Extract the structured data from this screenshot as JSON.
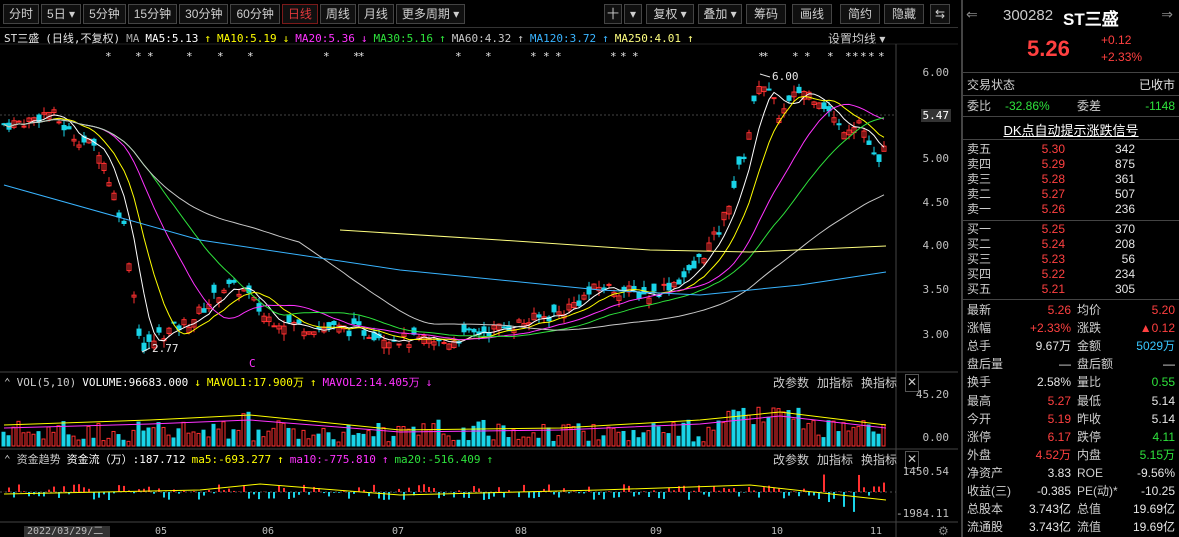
{
  "toolbar": {
    "tabs": [
      {
        "label": "分时",
        "active": false
      },
      {
        "label": "5日 ▾",
        "active": false
      },
      {
        "label": "5分钟",
        "active": false
      },
      {
        "label": "15分钟",
        "active": false
      },
      {
        "label": "30分钟",
        "active": false
      },
      {
        "label": "60分钟",
        "active": false
      },
      {
        "label": "日线",
        "active": true
      },
      {
        "label": "周线",
        "active": false
      },
      {
        "label": "月线",
        "active": false
      },
      {
        "label": "更多周期 ▾",
        "active": false
      }
    ],
    "right": [
      "十",
      "▾",
      "复权 ▾",
      "叠加 ▾",
      "筹码",
      "画线",
      "简约",
      "隐藏",
      "⇆"
    ]
  },
  "ma_line": {
    "name": "ST三盛",
    "mode": "(日线,不复权)",
    "ma": "MA",
    "ma5": "MA5:5.13",
    "ma10": "MA10:5.19",
    "ma20": "MA20:5.36",
    "ma30": "MA30:5.16",
    "ma60": "MA60:4.32",
    "ma120": "MA120:3.72",
    "ma250": "MA250:4.01",
    "setting": "设置均线 ▾"
  },
  "price_axis": [
    "6.00",
    "5.50",
    "5.00",
    "4.50",
    "4.00",
    "3.50",
    "3.00"
  ],
  "current_price_tag": "5.47",
  "annotations": {
    "high": "6.00",
    "low": "2.77",
    "mark": "C"
  },
  "vol": {
    "title": "VOL(5,10)",
    "volume": "VOLUME:96683.000",
    "mavol1": "MAVOL1:17.900万",
    "mavol2": "MAVOL2:14.405万",
    "axis_top": "45.20",
    "axis_bottom": "0.00"
  },
  "flow": {
    "title": "资金趋势",
    "label": "资金流（万）:187.712",
    "ma5": "ma5:-693.277",
    "ma10": "ma10:-775.810",
    "ma20": "ma20:-516.409",
    "axis_top": "1450.54",
    "axis_bottom": "-1984.11"
  },
  "panel_buttons": [
    "改参数",
    "加指标",
    "换指标"
  ],
  "x_axis": {
    "date": "2022/03/29/二",
    "months": [
      "05",
      "06",
      "07",
      "08",
      "09",
      "10",
      "11"
    ]
  },
  "colors": {
    "up": "#ff3030",
    "down": "#19d4e8",
    "ma5": "#ffffff",
    "ma10": "#ffff00",
    "ma20": "#ff33ff",
    "ma30": "#2ee23c",
    "ma60": "#c8c8c8",
    "ma120": "#39b4ff",
    "ma250": "#ffff80"
  },
  "side": {
    "code": "300282",
    "name": "ST三盛",
    "price": "5.26",
    "change": "+0.12",
    "pct": "+2.33%",
    "status_label": "交易状态",
    "status": "已收市",
    "webi_label": "委比",
    "webi": "-32.86%",
    "weicha_label": "委差",
    "weicha": "-1148",
    "banner": "DK点自动提示涨跌信号",
    "asks": [
      {
        "l": "卖五",
        "p": "5.30",
        "v": "342"
      },
      {
        "l": "卖四",
        "p": "5.29",
        "v": "875"
      },
      {
        "l": "卖三",
        "p": "5.28",
        "v": "361"
      },
      {
        "l": "卖二",
        "p": "5.27",
        "v": "507"
      },
      {
        "l": "卖一",
        "p": "5.26",
        "v": "236"
      }
    ],
    "bids": [
      {
        "l": "买一",
        "p": "5.25",
        "v": "370"
      },
      {
        "l": "买二",
        "p": "5.24",
        "v": "208"
      },
      {
        "l": "买三",
        "p": "5.23",
        "v": "56"
      },
      {
        "l": "买四",
        "p": "5.22",
        "v": "234"
      },
      {
        "l": "买五",
        "p": "5.21",
        "v": "305"
      }
    ],
    "stats": [
      {
        "l1": "最新",
        "v1": "5.26",
        "c1": "red",
        "l2": "均价",
        "v2": "5.20",
        "c2": "red"
      },
      {
        "l1": "涨幅",
        "v1": "+2.33%",
        "c1": "red",
        "l2": "涨跌",
        "v2": "▲0.12",
        "c2": "red"
      },
      {
        "l1": "总手",
        "v1": "9.67万",
        "c1": "wht",
        "l2": "金额",
        "v2": "5029万",
        "c2": "cyan"
      },
      {
        "l1": "盘后量",
        "v1": "—",
        "c1": "wht",
        "l2": "盘后额",
        "v2": "—",
        "c2": "wht"
      },
      {
        "l1": "换手",
        "v1": "2.58%",
        "c1": "wht",
        "l2": "量比",
        "v2": "0.55",
        "c2": "grn"
      },
      {
        "l1": "最高",
        "v1": "5.27",
        "c1": "red",
        "l2": "最低",
        "v2": "5.14",
        "c2": "wht"
      },
      {
        "l1": "今开",
        "v1": "5.19",
        "c1": "red",
        "l2": "昨收",
        "v2": "5.14",
        "c2": "wht"
      },
      {
        "l1": "涨停",
        "v1": "6.17",
        "c1": "red",
        "l2": "跌停",
        "v2": "4.11",
        "c2": "grn"
      },
      {
        "l1": "外盘",
        "v1": "4.52万",
        "c1": "red",
        "l2": "内盘",
        "v2": "5.15万",
        "c2": "grn"
      },
      {
        "l1": "净资产",
        "v1": "3.83",
        "c1": "wht",
        "l2": "ROE",
        "v2": "-9.56%",
        "c2": "wht"
      },
      {
        "l1": "收益(三)",
        "v1": "-0.385",
        "c1": "wht",
        "l2": "PE(动)*",
        "v2": "-10.25",
        "c2": "wht"
      },
      {
        "l1": "总股本",
        "v1": "3.743亿",
        "c1": "wht",
        "l2": "总值",
        "v2": "19.69亿",
        "c2": "wht"
      },
      {
        "l1": "流通股",
        "v1": "3.743亿",
        "c1": "wht",
        "l2": "流值",
        "v2": "19.69亿",
        "c2": "wht"
      }
    ]
  }
}
